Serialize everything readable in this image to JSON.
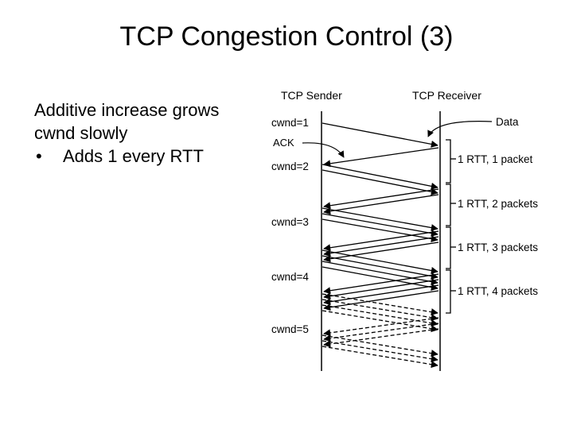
{
  "slide": {
    "title": "TCP Congestion Control (3)",
    "body_text": "Additive increase grows cwnd slowly",
    "bullets": [
      "Adds 1 every RTT"
    ]
  },
  "diagram": {
    "sender_label": "TCP Sender",
    "receiver_label": "TCP Receiver",
    "data_label": "Data",
    "ack_label": "ACK",
    "cwnd_labels": [
      "cwnd=1",
      "cwnd=2",
      "cwnd=3",
      "cwnd=4",
      "cwnd=5"
    ],
    "rtt_labels": [
      "1 RTT, 1 packet",
      "1 RTT, 2 packets",
      "1 RTT, 3 packets",
      "1 RTT, 4 packets"
    ]
  }
}
